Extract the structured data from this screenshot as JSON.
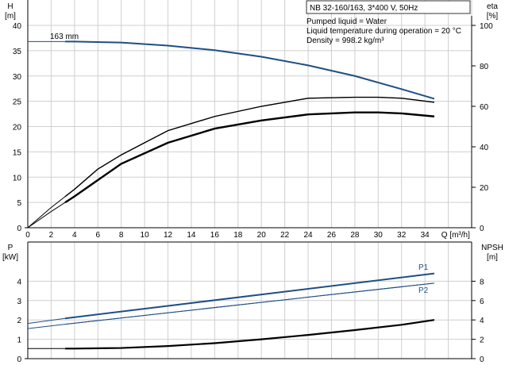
{
  "info_box": {
    "title": "NB 32-160/163, 3*400 V, 50Hz",
    "lines": [
      "Pumped liquid = Water",
      "Liquid temperature during operation = 20 °C",
      "Density = 998.2 kg/m³"
    ]
  },
  "chart_data": [
    {
      "type": "line",
      "xlabel": "Q [m³/h]",
      "ylabel": "H\n[m]",
      "ylabel_right": "eta\n[%]",
      "xlim": [
        0,
        38
      ],
      "ylim": [
        0,
        40
      ],
      "ylim_right": [
        0,
        100
      ],
      "x_ticks": [
        0,
        2,
        4,
        6,
        8,
        10,
        12,
        14,
        16,
        18,
        20,
        22,
        24,
        26,
        28,
        30,
        32,
        34
      ],
      "y_ticks": [
        0,
        5,
        10,
        15,
        20,
        25,
        30,
        35,
        40
      ],
      "y_right_ticks": [
        0,
        20,
        40,
        60,
        80,
        100
      ],
      "grid": true,
      "annotation": "163 mm",
      "colors": {
        "head": "#1f4e85",
        "eta": "#000000"
      },
      "series": [
        {
          "name": "163 mm",
          "axis": "left",
          "x": [
            0,
            4,
            8,
            12,
            16,
            20,
            24,
            28,
            32,
            34.8
          ],
          "y": [
            36.8,
            36.8,
            36.6,
            36.0,
            35.1,
            33.8,
            32.1,
            30.0,
            27.4,
            25.5
          ]
        },
        {
          "axis": "right",
          "x": [
            0,
            2,
            4,
            6,
            8,
            10,
            12,
            16,
            20,
            24,
            28,
            30,
            32,
            34.8
          ],
          "y": [
            0,
            10,
            19,
            29,
            36,
            42,
            48,
            55,
            60,
            64,
            64.5,
            64.5,
            64,
            62
          ]
        },
        {
          "axis": "right",
          "x": [
            0,
            2,
            4,
            8,
            12,
            16,
            20,
            24,
            28,
            30,
            32,
            34.8
          ],
          "y": [
            0,
            8,
            15.5,
            31.6,
            42,
            49,
            53,
            56,
            57,
            57,
            56.5,
            55
          ]
        }
      ]
    },
    {
      "type": "line",
      "ylabel": "P\n[kW]",
      "ylabel_right": "NPSH\n[m]",
      "xlim": [
        0,
        38
      ],
      "ylim": [
        0,
        5
      ],
      "ylim_right": [
        0,
        10
      ],
      "y_ticks": [
        0,
        1,
        2,
        3,
        4
      ],
      "y_right_ticks": [
        0,
        2,
        4,
        6,
        8
      ],
      "grid": true,
      "colors": {
        "P1": "#1f4e85",
        "P2": "#1f4e85",
        "NPSH": "#000000"
      },
      "series": [
        {
          "name": "P1",
          "axis": "left",
          "x": [
            0,
            3.2,
            34.8
          ],
          "y": [
            1.82,
            2.08,
            4.4
          ]
        },
        {
          "name": "P2",
          "axis": "left",
          "x": [
            0,
            3.2,
            34.8
          ],
          "y": [
            1.55,
            1.78,
            3.9
          ]
        },
        {
          "axis": "right",
          "x": [
            0,
            4,
            8,
            12,
            16,
            20,
            24,
            28,
            32,
            34.8
          ],
          "y": [
            1.04,
            1.04,
            1.1,
            1.3,
            1.6,
            2.0,
            2.45,
            2.95,
            3.5,
            4.0
          ]
        }
      ]
    }
  ]
}
